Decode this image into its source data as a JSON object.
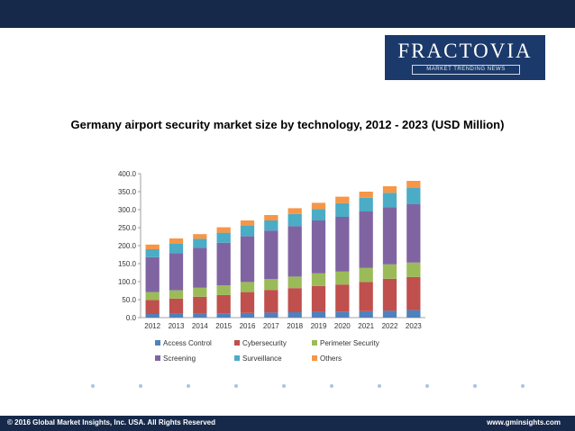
{
  "header": {
    "logo": {
      "name": "FRACTOVIA",
      "tagline": "MARKET TRENDING NEWS"
    }
  },
  "footer": {
    "copyright": "© 2016 Global Market Insights, Inc. USA. All Rights Reserved",
    "website": "www.gminsights.com"
  },
  "chart_data": {
    "type": "bar",
    "stacked": true,
    "title": "Germany airport security market size by technology, 2012 - 2023 (USD Million)",
    "xlabel": "",
    "ylabel": "",
    "ylim": [
      0,
      400
    ],
    "yticks": [
      "0.0",
      "50.0",
      "100.0",
      "150.0",
      "200.0",
      "250.0",
      "300.0",
      "350.0",
      "400.0"
    ],
    "grid": false,
    "legend_position": "bottom",
    "categories": [
      "2012",
      "2013",
      "2014",
      "2015",
      "2016",
      "2017",
      "2018",
      "2019",
      "2020",
      "2021",
      "2022",
      "2023"
    ],
    "series": [
      {
        "name": "Access Control",
        "color": "#4f81bd",
        "values": [
          10,
          11,
          11,
          12,
          13,
          14,
          15,
          16,
          17,
          18,
          19,
          21
        ]
      },
      {
        "name": "Cybersecurity",
        "color": "#c0504d",
        "values": [
          39,
          42,
          47,
          51,
          58,
          63,
          67,
          72,
          75,
          81,
          89,
          92
        ]
      },
      {
        "name": "Perimeter Security",
        "color": "#9bbb59",
        "values": [
          22,
          23,
          25,
          27,
          28,
          30,
          32,
          35,
          36,
          39,
          40,
          40
        ]
      },
      {
        "name": "Screening",
        "color": "#8064a2",
        "values": [
          97,
          103,
          111,
          118,
          127,
          135,
          140,
          147,
          152,
          157,
          159,
          162
        ]
      },
      {
        "name": "Surveillance",
        "color": "#4bacc6",
        "values": [
          22,
          26,
          25,
          28,
          30,
          28,
          34,
          32,
          38,
          38,
          40,
          45
        ]
      },
      {
        "name": "Others",
        "color": "#f79646",
        "values": [
          13,
          15,
          13,
          15,
          14,
          15,
          16,
          17,
          18,
          17,
          18,
          20
        ]
      }
    ]
  }
}
